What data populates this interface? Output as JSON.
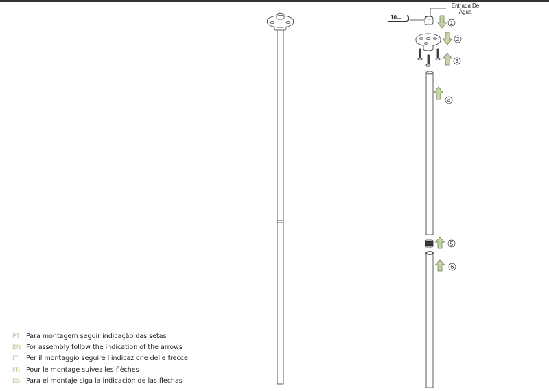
{
  "labels": {
    "water_inlet": "Entrada De Água",
    "key_size": "10",
    "key_unit": "mm"
  },
  "steps": [
    "1",
    "2",
    "3",
    "4",
    "5",
    "6"
  ],
  "instructions": [
    {
      "code": "PT",
      "text": "Para montagem seguir indicação das setas"
    },
    {
      "code": "EN",
      "text": "For assembly follow the indication of the arrows"
    },
    {
      "code": "IT",
      "text": "Per il montaggio seguire l'indicazione delle frecce"
    },
    {
      "code": "FR",
      "text": "Pour le montage suivez les flèches"
    },
    {
      "code": "ES",
      "text": "Para el montaje siga la indicación de las flechas"
    }
  ],
  "colors": {
    "arrow_fill": "#c5d6a6",
    "arrow_stroke": "#6b7a4e",
    "code_color": "#b7c98f",
    "line": "#333333"
  }
}
